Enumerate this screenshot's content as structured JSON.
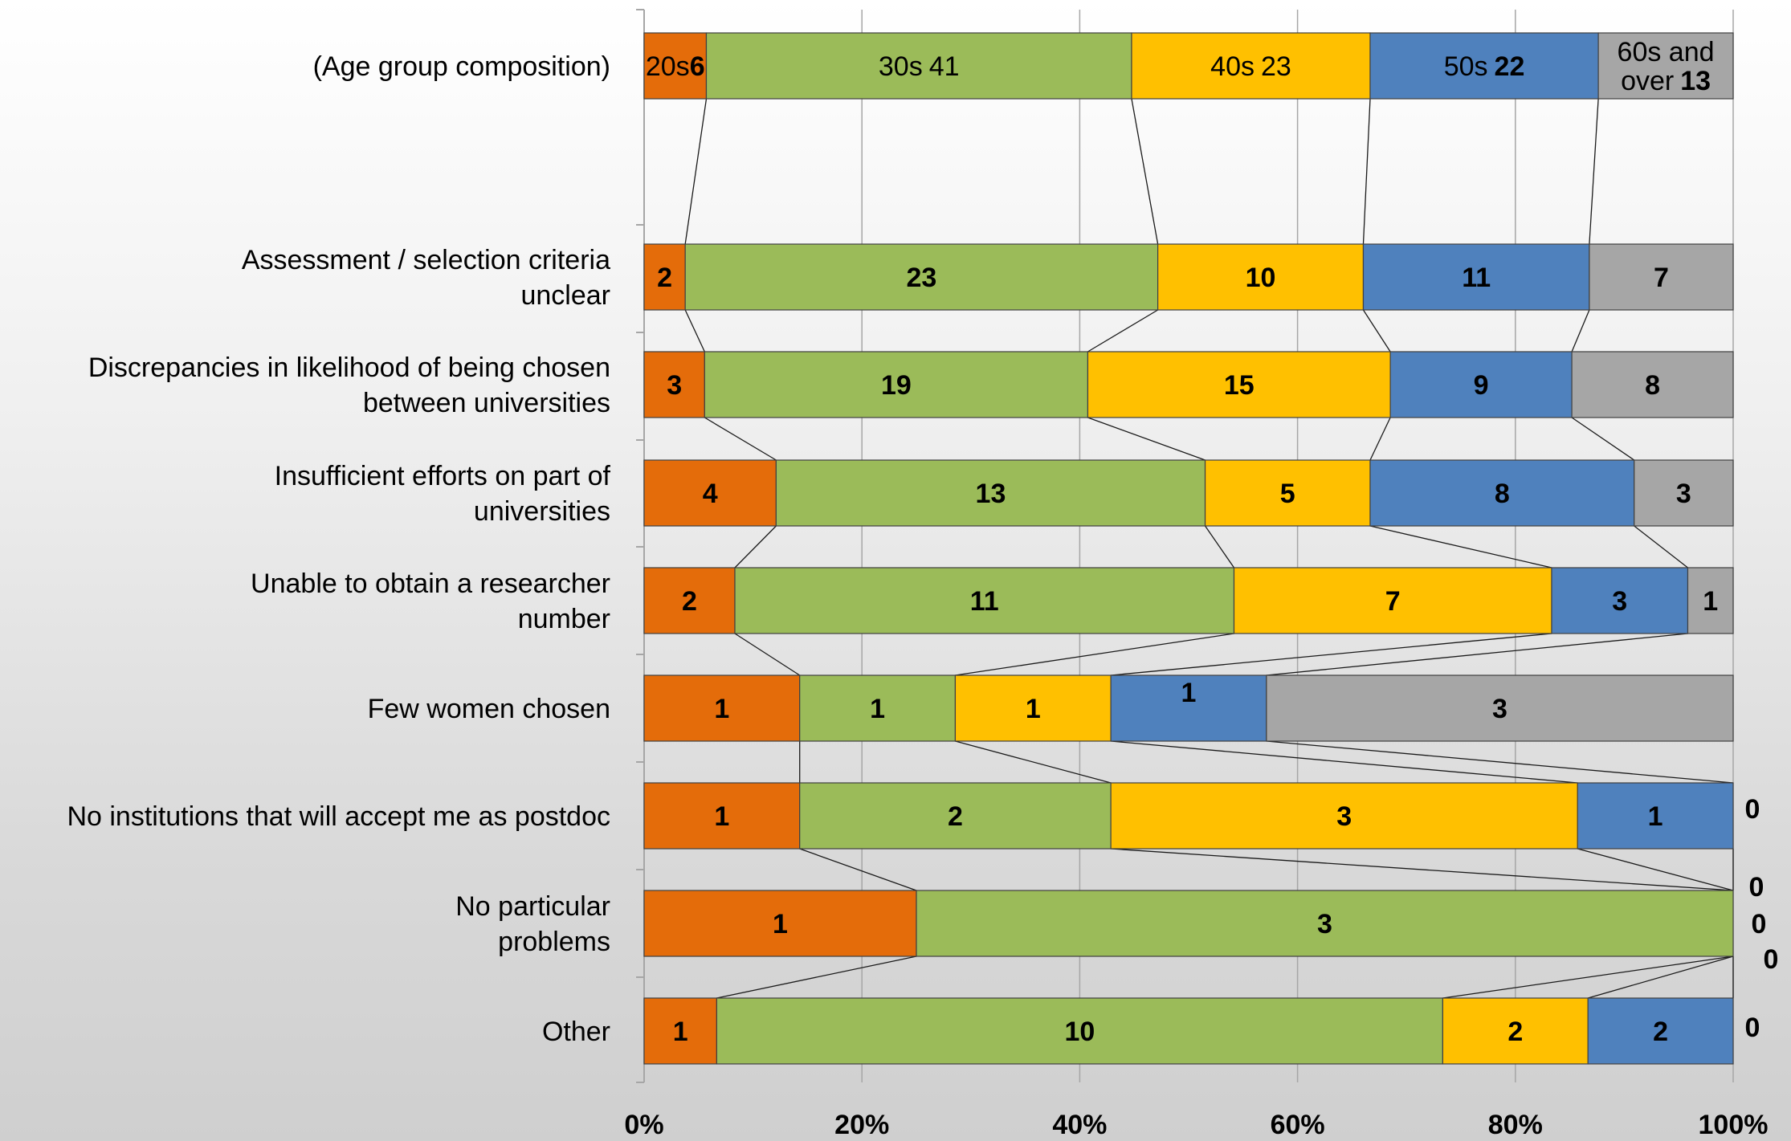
{
  "chart_data": {
    "type": "bar",
    "stacked": "percent",
    "orientation": "horizontal",
    "title": "",
    "xlabel": "",
    "ylabel": "",
    "xlim": [
      0,
      100
    ],
    "x_ticks": [
      "0%",
      "20%",
      "40%",
      "60%",
      "80%",
      "100%"
    ],
    "grid": true,
    "series_line_connectors": true,
    "categories": [
      [
        "(Age group composition)"
      ],
      [
        "Assessment / selection criteria",
        "unclear"
      ],
      [
        "Discrepancies in likelihood of being chosen",
        "between universities"
      ],
      [
        "Insufficient efforts on part of",
        "universities"
      ],
      [
        "Unable to obtain a researcher",
        "number"
      ],
      [
        "Few women chosen"
      ],
      [
        "No institutions that will accept me as postdoc"
      ],
      [
        "No particular",
        "problems"
      ],
      [
        "Other"
      ]
    ],
    "series": [
      {
        "label": "20s",
        "color": "#E46C0A",
        "values": [
          6,
          2,
          3,
          4,
          2,
          1,
          1,
          1,
          1
        ]
      },
      {
        "label": "30s",
        "color": "#9BBB59",
        "values": [
          41,
          23,
          19,
          13,
          11,
          1,
          2,
          3,
          10
        ]
      },
      {
        "label": "40s",
        "color": "#FFC000",
        "values": [
          23,
          10,
          15,
          5,
          7,
          1,
          3,
          0,
          2
        ]
      },
      {
        "label": "50s",
        "color": "#4F81BD",
        "values": [
          22,
          11,
          9,
          8,
          3,
          1,
          1,
          0,
          2
        ]
      },
      {
        "label": "60s and over",
        "color": "#A6A6A6",
        "values": [
          13,
          7,
          8,
          3,
          1,
          3,
          0,
          0,
          0
        ]
      }
    ],
    "composition_row_labels": [
      [
        "20s"
      ],
      [
        "30s"
      ],
      [
        "40s"
      ],
      [
        "50s"
      ],
      [
        "60s and",
        "over"
      ]
    ],
    "zero_value_labels": [
      "0",
      "0",
      "0",
      "0",
      "0"
    ]
  }
}
